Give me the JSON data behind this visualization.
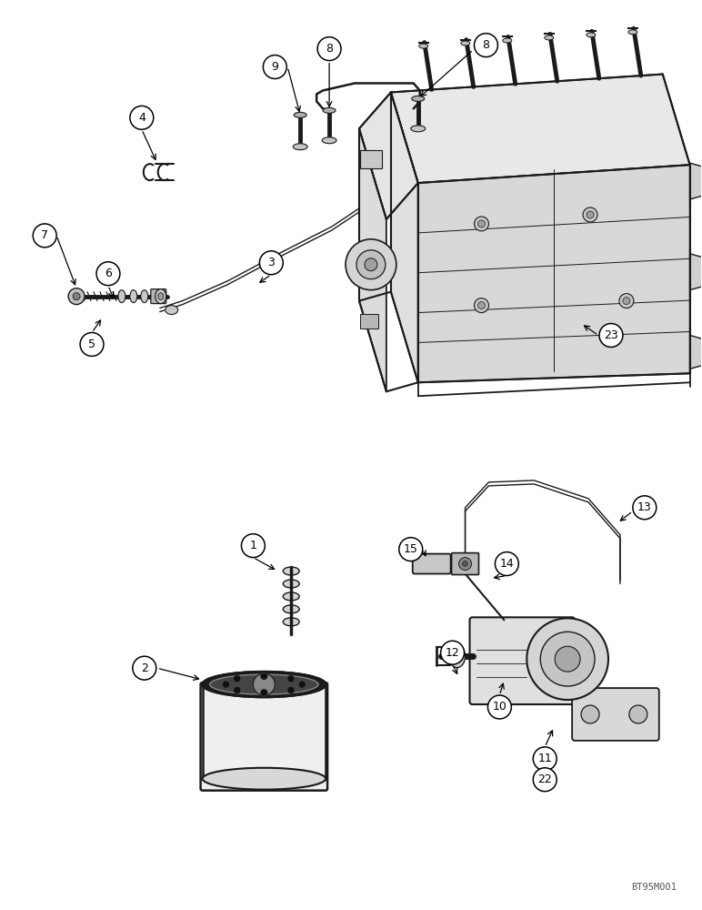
{
  "bg_color": "#ffffff",
  "lc": "#1a1a1a",
  "watermark": "BT95M001",
  "fig_width": 7.72,
  "fig_height": 10.0,
  "dpi": 100,
  "callouts_upper": [
    [
      "4",
      155,
      128
    ],
    [
      "7",
      48,
      258
    ],
    [
      "6",
      118,
      300
    ],
    [
      "5",
      100,
      378
    ],
    [
      "3",
      298,
      288
    ],
    [
      "9",
      302,
      72
    ],
    [
      "8",
      362,
      52
    ],
    [
      "8",
      535,
      48
    ],
    [
      "23",
      673,
      368
    ]
  ],
  "callouts_lower": [
    [
      "1",
      278,
      600
    ],
    [
      "2",
      158,
      735
    ],
    [
      "15",
      452,
      604
    ],
    [
      "14",
      558,
      620
    ],
    [
      "13",
      710,
      558
    ],
    [
      "12",
      498,
      718
    ],
    [
      "10",
      550,
      778
    ],
    [
      "11",
      600,
      835
    ],
    [
      "22",
      600,
      858
    ]
  ]
}
